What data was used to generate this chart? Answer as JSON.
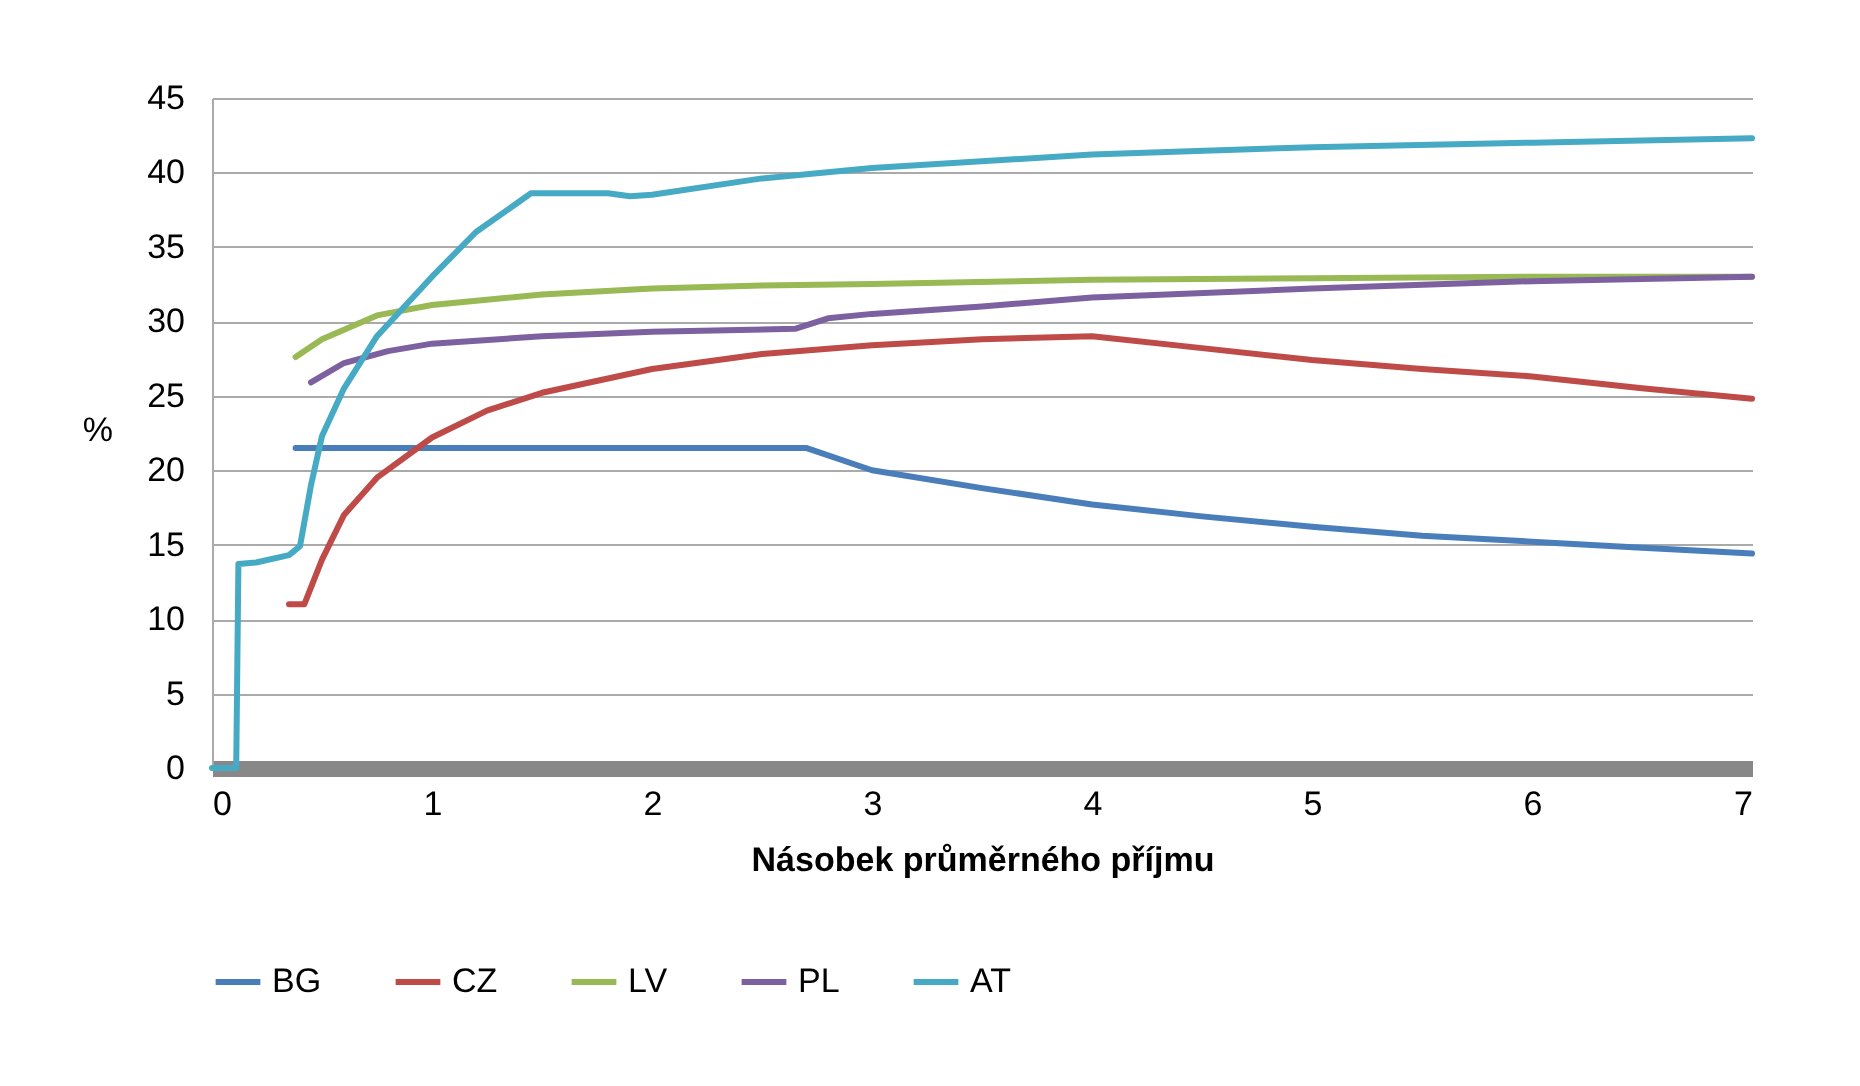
{
  "chart_data": {
    "type": "line",
    "xlabel": "Násobek průměrného příjmu",
    "ylabel": "%",
    "xlim": [
      0,
      7
    ],
    "xticks": [
      0,
      1,
      2,
      3,
      4,
      5,
      6,
      7
    ],
    "ylim": [
      0,
      45
    ],
    "yticks": [
      0,
      5,
      10,
      15,
      20,
      25,
      30,
      35,
      40,
      45
    ],
    "grid": "y",
    "legend": "bottom",
    "marker": "none",
    "line_style": "solid",
    "series": [
      {
        "name": "BG",
        "color": "#4a7ebb",
        "x": [
          0.38,
          1,
          2,
          2.7,
          3,
          3.5,
          4,
          4.5,
          5,
          5.5,
          6,
          6.5,
          7
        ],
        "values": [
          21.5,
          21.5,
          21.5,
          21.5,
          20,
          18.8,
          17.7,
          16.9,
          16.2,
          15.6,
          15.2,
          14.8,
          14.4
        ]
      },
      {
        "name": "CZ",
        "color": "#be4b48",
        "x": [
          0.35,
          0.42,
          0.5,
          0.6,
          0.75,
          1,
          1.25,
          1.5,
          2,
          2.5,
          3,
          3.5,
          4,
          4.5,
          5,
          5.5,
          6,
          6.5,
          7
        ],
        "values": [
          11,
          11,
          14,
          17,
          19.5,
          22.2,
          24,
          25.2,
          26.8,
          27.8,
          28.4,
          28.8,
          29,
          28.2,
          27.4,
          26.8,
          26.3,
          25.5,
          24.8
        ]
      },
      {
        "name": "LV",
        "color": "#98b954",
        "x": [
          0.38,
          0.5,
          0.75,
          1,
          1.5,
          2,
          2.5,
          3,
          4,
          5,
          6,
          7
        ],
        "values": [
          27.6,
          28.8,
          30.4,
          31.1,
          31.8,
          32.2,
          32.4,
          32.5,
          32.8,
          32.9,
          33,
          33
        ]
      },
      {
        "name": "PL",
        "color": "#7d60a0",
        "x": [
          0.45,
          0.6,
          0.8,
          1,
          1.5,
          2,
          2.65,
          2.8,
          3,
          3.5,
          4,
          5,
          6,
          7
        ],
        "values": [
          25.9,
          27.2,
          28,
          28.5,
          29,
          29.3,
          29.5,
          30.2,
          30.5,
          31,
          31.6,
          32.2,
          32.7,
          33
        ]
      },
      {
        "name": "AT",
        "color": "#46aac5",
        "x": [
          0,
          0.11,
          0.12,
          0.2,
          0.35,
          0.4,
          0.45,
          0.5,
          0.6,
          0.75,
          1,
          1.2,
          1.45,
          1.8,
          1.9,
          2,
          2.5,
          3,
          4,
          5,
          6,
          7
        ],
        "values": [
          0,
          0,
          13.7,
          13.8,
          14.3,
          14.9,
          19,
          22.3,
          25.5,
          29,
          33,
          36,
          38.6,
          38.6,
          38.4,
          38.5,
          39.6,
          40.3,
          41.2,
          41.7,
          42,
          42.3
        ]
      }
    ]
  }
}
